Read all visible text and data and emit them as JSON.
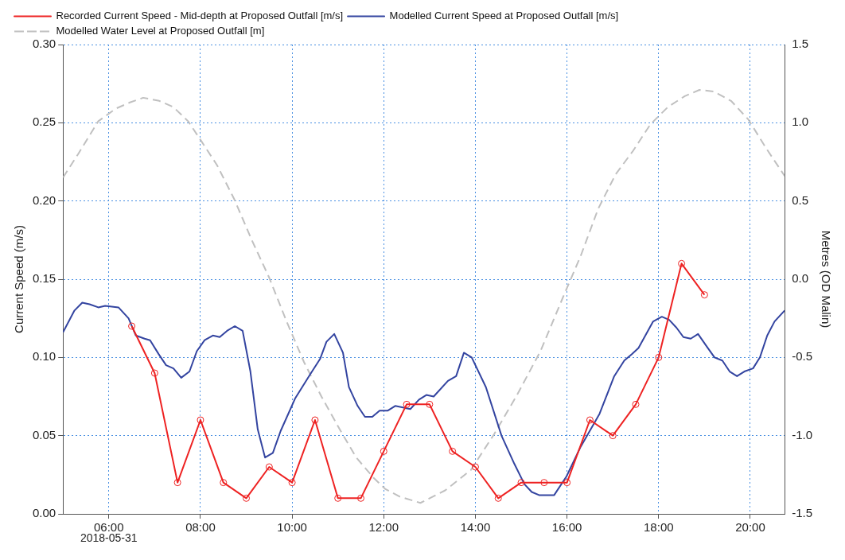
{
  "chart_data": {
    "type": "line",
    "ylabel": "Current Speed (m/s)",
    "y2label": "Metres (OD Malin)",
    "annotations": [
      "2018-05-31"
    ],
    "xlim": [
      5,
      20.75
    ],
    "xticks": [
      {
        "value": 6,
        "label": "06:00"
      },
      {
        "value": 8,
        "label": "08:00"
      },
      {
        "value": 10,
        "label": "10:00"
      },
      {
        "value": 12,
        "label": "12:00"
      },
      {
        "value": 14,
        "label": "14:00"
      },
      {
        "value": 16,
        "label": "16:00"
      },
      {
        "value": 18,
        "label": "18:00"
      },
      {
        "value": 20,
        "label": "20:00"
      }
    ],
    "ylim": [
      0,
      0.3
    ],
    "yticks": [
      {
        "value": 0,
        "label": "0.00"
      },
      {
        "value": 0.05,
        "label": "0.05"
      },
      {
        "value": 0.1,
        "label": "0.10"
      },
      {
        "value": 0.15,
        "label": "0.15"
      },
      {
        "value": 0.2,
        "label": "0.20"
      },
      {
        "value": 0.25,
        "label": "0.25"
      },
      {
        "value": 0.3,
        "label": "0.30"
      }
    ],
    "y2lim": [
      -1.5,
      1.5
    ],
    "y2ticks": [
      {
        "value": -1.5,
        "label": "-1.5"
      },
      {
        "value": -1,
        "label": "-1.0"
      },
      {
        "value": -0.5,
        "label": "-0.5"
      },
      {
        "value": 0,
        "label": "0.0"
      },
      {
        "value": 0.5,
        "label": "0.5"
      },
      {
        "value": 1,
        "label": "1.0"
      },
      {
        "value": 1.5,
        "label": "1.5"
      }
    ],
    "grid": true,
    "legend": "top",
    "series": [
      {
        "name": "Recorded Current Speed - Mid-depth at Proposed Outfall [m/s]",
        "color": "#ee2222",
        "marker": "circle",
        "line_style": "solid",
        "x": [
          6.5,
          7,
          7.5,
          8,
          8.5,
          9,
          9.5,
          10,
          10.5,
          11,
          11.5,
          12,
          12.5,
          13,
          13.5,
          14,
          14.5,
          15,
          15.5,
          16,
          16.5,
          17,
          17.5,
          18,
          18.5,
          19
        ],
        "values": [
          0.12,
          0.09,
          0.02,
          0.06,
          0.02,
          0.01,
          0.03,
          0.02,
          0.06,
          0.01,
          0.01,
          0.04,
          0.07,
          0.07,
          0.04,
          0.03,
          0.01,
          0.02,
          0.02,
          0.02,
          0.06,
          0.05,
          0.07,
          0.1,
          0.16,
          0.14
        ]
      },
      {
        "name": "Modelled Current Speed at Proposed Outfall [m/s]",
        "color": "#3344a0",
        "marker": "none",
        "line_style": "solid",
        "x": [
          5,
          5.25,
          5.42,
          5.58,
          5.77,
          5.92,
          6.21,
          6.43,
          6.59,
          6.78,
          6.9,
          7.09,
          7.25,
          7.41,
          7.58,
          7.76,
          7.92,
          8.09,
          8.27,
          8.42,
          8.58,
          8.75,
          8.92,
          9.09,
          9.25,
          9.41,
          9.58,
          9.75,
          10.07,
          10.39,
          10.61,
          10.75,
          10.92,
          11.11,
          11.24,
          11.43,
          11.59,
          11.75,
          11.91,
          12.09,
          12.25,
          12.58,
          12.77,
          12.93,
          13.09,
          13.4,
          13.58,
          13.75,
          13.92,
          14.23,
          14.57,
          14.85,
          15.07,
          15.23,
          15.39,
          15.72,
          15.99,
          16.3,
          16.71,
          17.03,
          17.25,
          17.41,
          17.56,
          17.88,
          18.07,
          18.23,
          18.39,
          18.54,
          18.7,
          18.86,
          19.05,
          19.22,
          19.39,
          19.55,
          19.71,
          19.87,
          20.06,
          20.21,
          20.37,
          20.53,
          20.75
        ],
        "values": [
          0.116,
          0.13,
          0.135,
          0.134,
          0.132,
          0.133,
          0.132,
          0.125,
          0.114,
          0.112,
          0.111,
          0.102,
          0.095,
          0.093,
          0.087,
          0.091,
          0.104,
          0.111,
          0.114,
          0.113,
          0.117,
          0.12,
          0.117,
          0.091,
          0.054,
          0.036,
          0.039,
          0.053,
          0.074,
          0.089,
          0.099,
          0.11,
          0.115,
          0.103,
          0.081,
          0.069,
          0.062,
          0.062,
          0.066,
          0.066,
          0.069,
          0.067,
          0.073,
          0.076,
          0.075,
          0.085,
          0.088,
          0.103,
          0.1,
          0.081,
          0.05,
          0.032,
          0.019,
          0.014,
          0.012,
          0.012,
          0.024,
          0.043,
          0.064,
          0.088,
          0.098,
          0.102,
          0.106,
          0.123,
          0.126,
          0.124,
          0.119,
          0.113,
          0.112,
          0.115,
          0.107,
          0.1,
          0.098,
          0.091,
          0.088,
          0.091,
          0.093,
          0.1,
          0.114,
          0.123,
          0.13
        ]
      },
      {
        "name": "Modelled Water Level at Proposed Outfall [m]",
        "color": "#c0c0c0",
        "marker": "none",
        "line_style": "dashed",
        "axis": "y2",
        "x": [
          5,
          5.33,
          5.77,
          6.15,
          6.46,
          6.75,
          7.1,
          7.41,
          7.73,
          7.98,
          8.36,
          8.74,
          9.12,
          9.5,
          9.88,
          10.26,
          10.64,
          11.02,
          11.4,
          11.78,
          12.03,
          12.35,
          12.8,
          13.34,
          13.9,
          14.41,
          14.91,
          15.42,
          15.92,
          16.3,
          16.68,
          17.06,
          17.44,
          17.82,
          18.2,
          18.57,
          18.89,
          19.2,
          19.58,
          19.96,
          20.34,
          20.75
        ],
        "values": [
          0.65,
          0.8,
          1.01,
          1.09,
          1.13,
          1.16,
          1.14,
          1.1,
          1.01,
          0.9,
          0.73,
          0.51,
          0.25,
          0.01,
          -0.27,
          -0.53,
          -0.75,
          -0.95,
          -1.14,
          -1.27,
          -1.34,
          -1.39,
          -1.43,
          -1.35,
          -1.22,
          -0.99,
          -0.74,
          -0.46,
          -0.11,
          0.15,
          0.45,
          0.67,
          0.82,
          0.99,
          1.1,
          1.17,
          1.21,
          1.2,
          1.14,
          1.02,
          0.84,
          0.66
        ]
      }
    ]
  }
}
